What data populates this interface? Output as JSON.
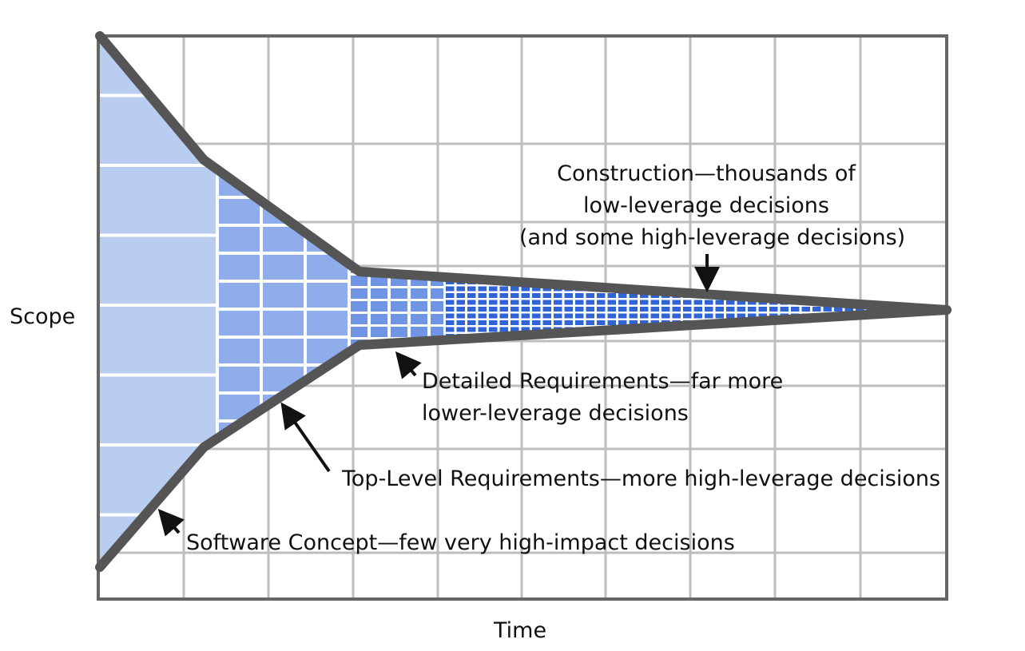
{
  "axes": {
    "y_label": "Scope",
    "x_label": "Time"
  },
  "phases": [
    {
      "name": "software-concept",
      "label": "Software Concept—few very high-impact decisions"
    },
    {
      "name": "top-level-requirements",
      "label": "Top-Level Requirements—more high-leverage decisions"
    },
    {
      "name": "detailed-requirements",
      "lines": [
        "Detailed Requirements—far more",
        "lower-leverage decisions"
      ]
    },
    {
      "name": "construction",
      "lines": [
        "Construction—thousands of",
        "low-leverage decisions",
        "(and some high-leverage decisions)"
      ]
    }
  ],
  "colors": {
    "outline": "#555555",
    "grid": "#bdbdbd",
    "concept_fill": "#b9cdf0",
    "top_level_fill": "#8fadea",
    "detailed_fill": "#6f95e4",
    "construction_fill": "#2f63d6",
    "arrow": "#111111"
  }
}
